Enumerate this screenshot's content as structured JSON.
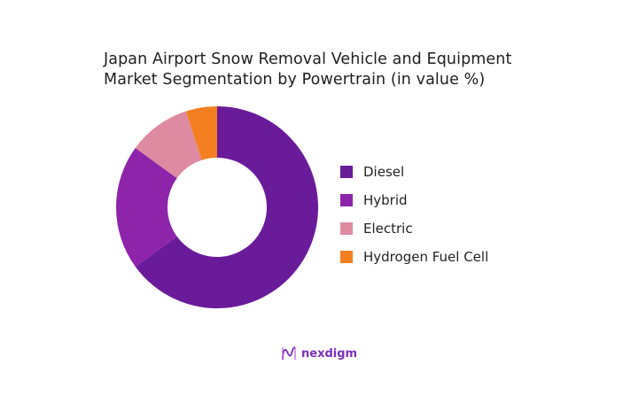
{
  "title": {
    "line1": "Japan Airport Snow Removal Vehicle and Equipment",
    "line2": "Market Segmentation by Powertrain (in value %)"
  },
  "legend": [
    {
      "label": "Diesel",
      "color": "#6a1b9a"
    },
    {
      "label": "Hybrid",
      "color": "#8e24aa"
    },
    {
      "label": "Electric",
      "color": "#de8aa0"
    },
    {
      "label": "Hydrogen Fuel Cell",
      "color": "#f47f20"
    }
  ],
  "logo": {
    "text": "nexdigm",
    "color": "#7b2fbf"
  },
  "chart_data": {
    "type": "pie",
    "variant": "donut",
    "title": "Japan Airport Snow Removal Vehicle and Equipment Market Segmentation by Powertrain (in value %)",
    "categories": [
      "Diesel",
      "Hybrid",
      "Electric",
      "Hydrogen Fuel Cell"
    ],
    "values": [
      65,
      20,
      10,
      5
    ],
    "colors": [
      "#6a1b9a",
      "#8e24aa",
      "#de8aa0",
      "#f47f20"
    ],
    "legend_position": "right",
    "start_angle": "top, clockwise",
    "data_labels": false
  }
}
